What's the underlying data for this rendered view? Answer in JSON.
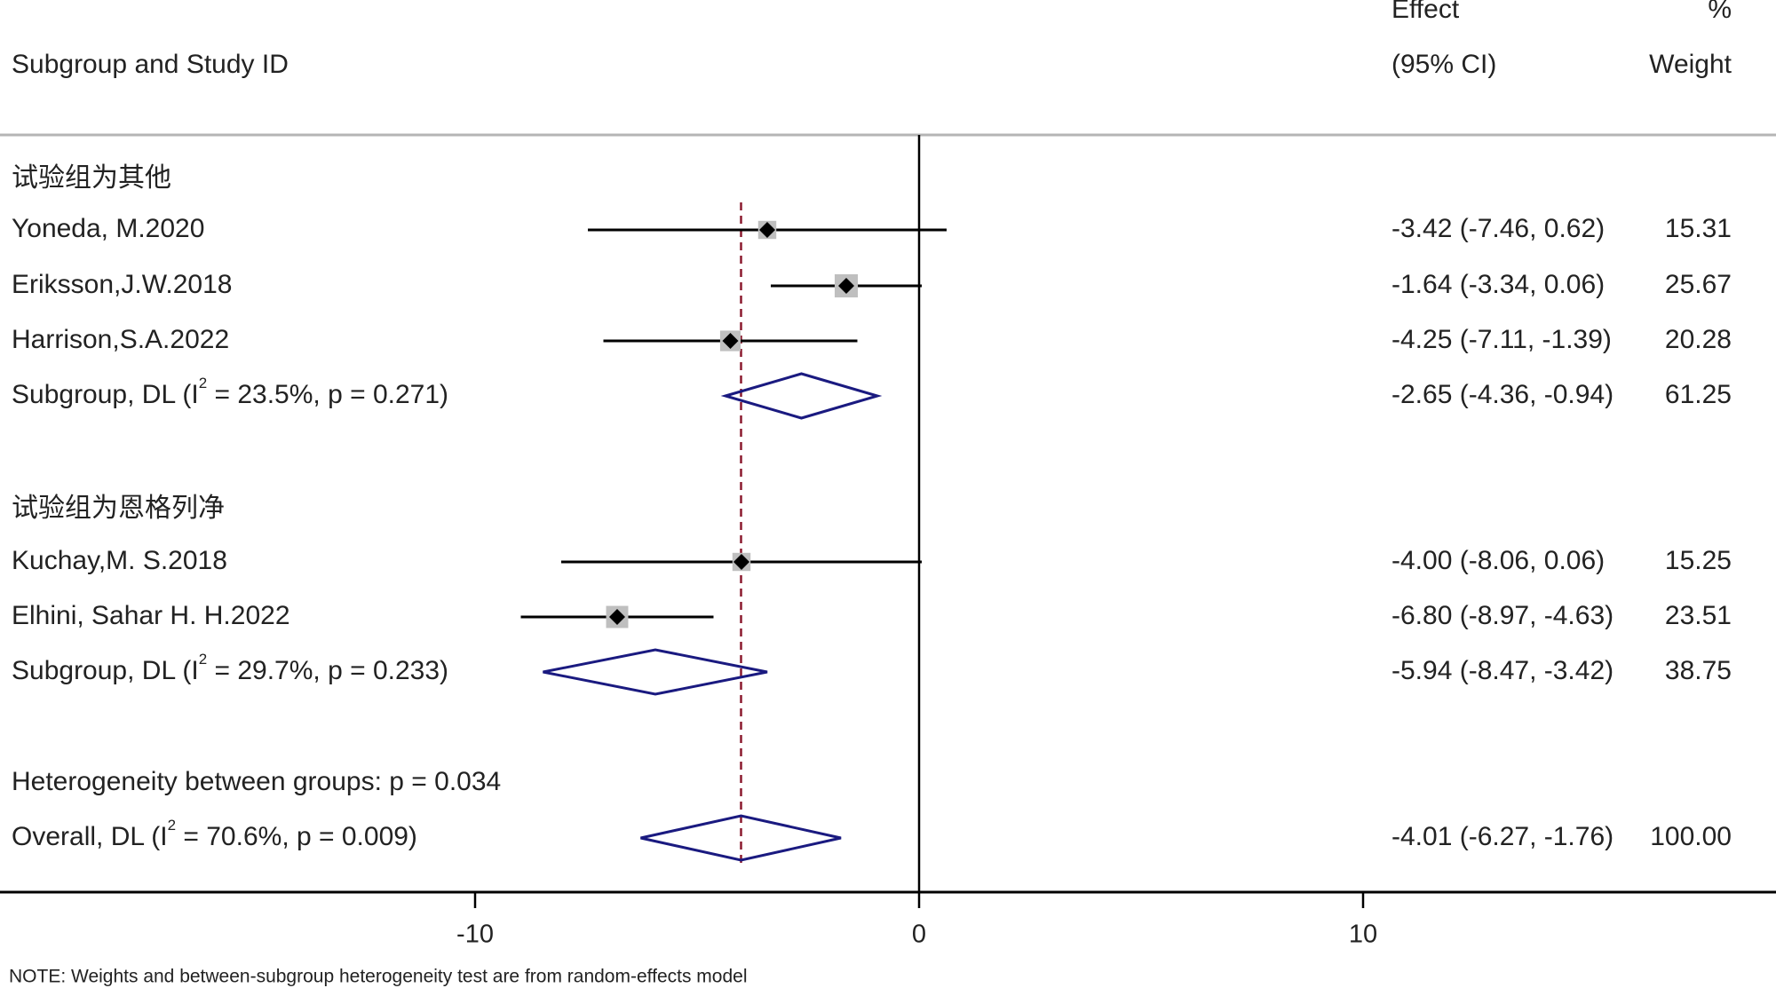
{
  "chart_data": {
    "type": "forest",
    "header": {
      "study_col": "Subgroup and Study ID",
      "effect_line1": "Effect",
      "effect_line2": "(95% CI)",
      "weight_line1": "%",
      "weight_line2": "Weight"
    },
    "xlim": [
      -20,
      20
    ],
    "null_line": 0,
    "ticks": [
      -10,
      0,
      10
    ],
    "tick_labels": [
      "-10",
      "0",
      "10"
    ],
    "overall_effect_line": -4.01,
    "rows": [
      {
        "kind": "group",
        "label": "试验组为其他"
      },
      {
        "kind": "study",
        "label": "Yoneda, M.2020",
        "est": -3.42,
        "lo": -7.46,
        "hi": 0.62,
        "weight": 15.31,
        "effect_text": "-3.42 (-7.46, 0.62)",
        "weight_text": "15.31"
      },
      {
        "kind": "study",
        "label": "Eriksson,J.W.2018",
        "est": -1.64,
        "lo": -3.34,
        "hi": 0.06,
        "weight": 25.67,
        "effect_text": "-1.64 (-3.34, 0.06)",
        "weight_text": "25.67"
      },
      {
        "kind": "study",
        "label": "Harrison,S.A.2022",
        "est": -4.25,
        "lo": -7.11,
        "hi": -1.39,
        "weight": 20.28,
        "effect_text": "-4.25 (-7.11, -1.39)",
        "weight_text": "20.28"
      },
      {
        "kind": "subgroup",
        "label_pre": "Subgroup, DL (I",
        "label_sup": "2",
        "label_post": " = 23.5%, p = 0.271)",
        "est": -2.65,
        "lo": -4.36,
        "hi": -0.94,
        "effect_text": "-2.65 (-4.36, -0.94)",
        "weight_text": "61.25"
      },
      {
        "kind": "blank"
      },
      {
        "kind": "group",
        "label": "试验组为恩格列净"
      },
      {
        "kind": "study",
        "label": "Kuchay,M. S.2018",
        "est": -4.0,
        "lo": -8.06,
        "hi": 0.06,
        "weight": 15.25,
        "effect_text": "-4.00 (-8.06, 0.06)",
        "weight_text": "15.25"
      },
      {
        "kind": "study",
        "label": "Elhini, Sahar H. H.2022",
        "est": -6.8,
        "lo": -8.97,
        "hi": -4.63,
        "weight": 23.51,
        "effect_text": "-6.80 (-8.97, -4.63)",
        "weight_text": "23.51"
      },
      {
        "kind": "subgroup",
        "label_pre": "Subgroup, DL (I",
        "label_sup": "2",
        "label_post": " = 29.7%, p = 0.233)",
        "est": -5.94,
        "lo": -8.47,
        "hi": -3.42,
        "effect_text": "-5.94 (-8.47, -3.42)",
        "weight_text": "38.75"
      },
      {
        "kind": "blank"
      },
      {
        "kind": "note",
        "label": "Heterogeneity between groups: p = 0.034"
      },
      {
        "kind": "overall",
        "label_pre": "Overall, DL (I",
        "label_sup": "2",
        "label_post": " = 70.6%, p = 0.009)",
        "est": -4.01,
        "lo": -6.27,
        "hi": -1.76,
        "effect_text": "-4.01 (-6.27, -1.76)",
        "weight_text": "100.00"
      }
    ],
    "footnote": "NOTE: Weights and between-subgroup heterogeneity test are from random-effects model",
    "colors": {
      "ci_line": "#000000",
      "marker": "#000000",
      "weight_box": "#bfbfbf",
      "diamond": "#1a1a80",
      "overall_line": "#8b1a2e",
      "axis": "#000000",
      "header_rule": "#b5b5b5"
    }
  }
}
